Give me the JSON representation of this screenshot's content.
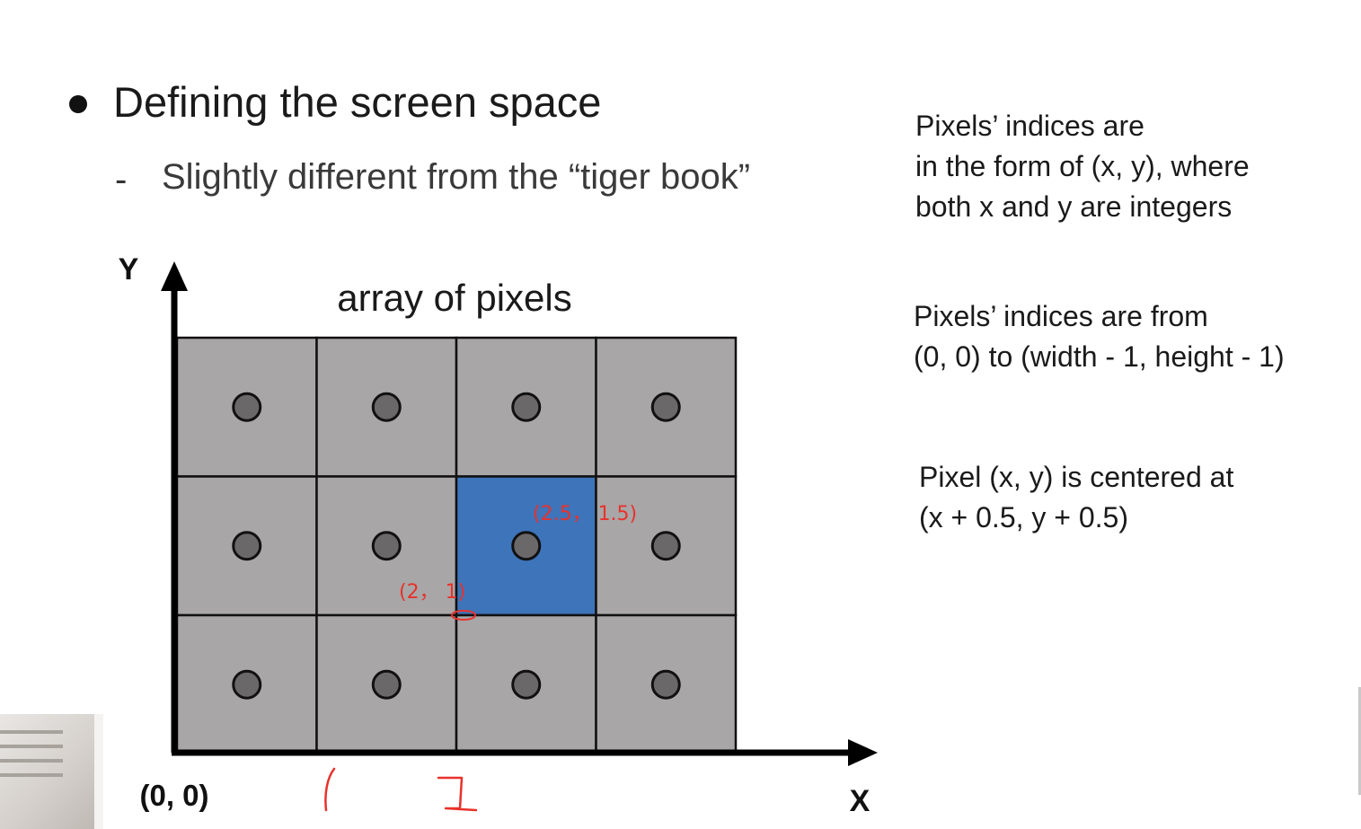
{
  "bullet": {
    "heading": "Defining the screen space",
    "dash": "-",
    "subheading": "Slightly different from the “tiger book”"
  },
  "notes": [
    {
      "lines": [
        "Pixels’ indices are",
        "in the form of (x, y), where",
        "both x and y are integers"
      ]
    },
    {
      "lines": [
        "Pixels’ indices are from",
        "(0, 0) to (width - 1, height - 1)"
      ]
    },
    {
      "lines": [
        "Pixel (x, y) is centered at",
        "(x + 0.5, y + 0.5)"
      ]
    }
  ],
  "diagram": {
    "title": "array of pixels",
    "y_axis_label": "Y",
    "x_axis_label": "X",
    "origin_label": "(0, 0)",
    "columns": 4,
    "rows": 3,
    "highlighted_pixel": {
      "col": 2,
      "row": 1
    },
    "colors": {
      "cell": "#a8a6a7",
      "highlight": "#3d74ba",
      "dot": "#6b6869",
      "grid": "#111111",
      "annotation": "#e8322c"
    },
    "annotations": {
      "center_label": "(2.5， 1.5)",
      "corner_label": "(2， 1)",
      "tick_1": "1",
      "tick_2": "2"
    }
  }
}
